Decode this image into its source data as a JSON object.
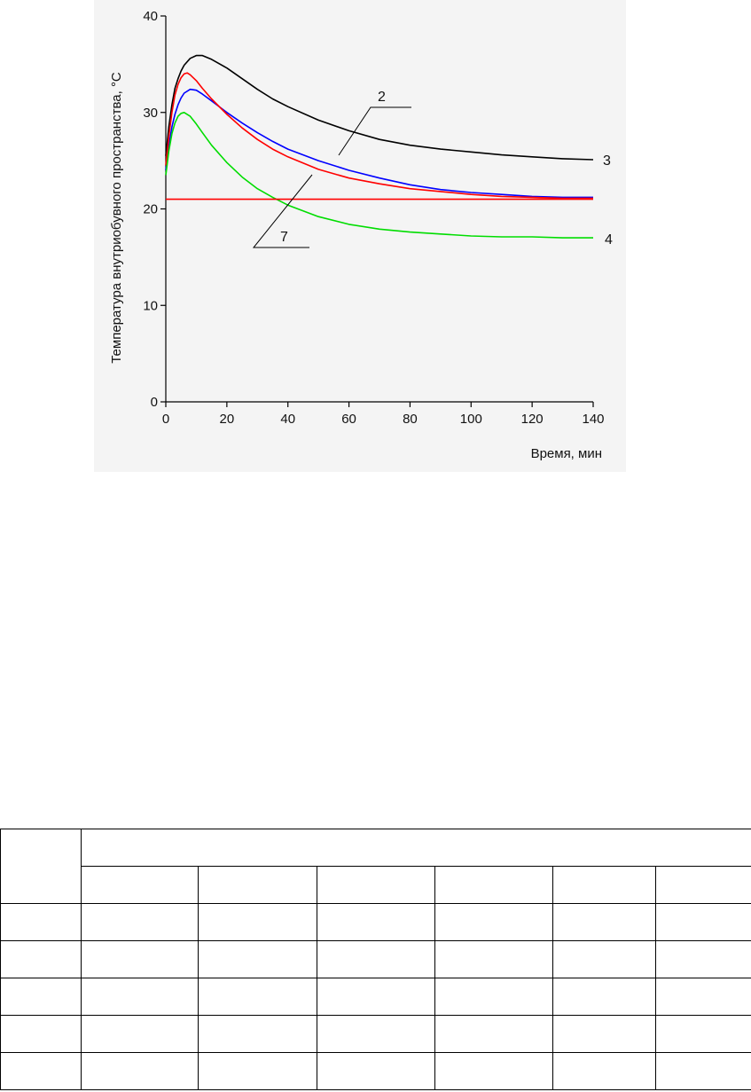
{
  "chart_data": {
    "type": "line",
    "xlabel": "Время, мин",
    "ylabel": "Температура внутриобувного пространства, °C",
    "xlim": [
      0,
      140
    ],
    "ylim": [
      0,
      40
    ],
    "xticks": [
      0,
      20,
      40,
      60,
      80,
      100,
      120,
      140
    ],
    "yticks": [
      0,
      10,
      20,
      30,
      40
    ],
    "grid": false,
    "series": [
      {
        "name": "3",
        "color": "#000000",
        "x": [
          0,
          1,
          2,
          3,
          4,
          5,
          6,
          8,
          10,
          12,
          15,
          20,
          25,
          30,
          35,
          40,
          50,
          60,
          70,
          80,
          90,
          100,
          110,
          120,
          130,
          140
        ],
        "y": [
          25.5,
          28.5,
          30.8,
          32.5,
          33.5,
          34.3,
          34.9,
          35.6,
          35.9,
          35.9,
          35.5,
          34.6,
          33.5,
          32.4,
          31.4,
          30.6,
          29.2,
          28.1,
          27.2,
          26.6,
          26.2,
          25.9,
          25.6,
          25.4,
          25.2,
          25.1
        ]
      },
      {
        "name": "2",
        "color": "#0000ff",
        "x": [
          0,
          1,
          2,
          3,
          4,
          5,
          6,
          8,
          10,
          12,
          15,
          20,
          25,
          30,
          35,
          40,
          50,
          60,
          70,
          80,
          90,
          100,
          110,
          120,
          130,
          140
        ],
        "y": [
          24.0,
          26.5,
          28.5,
          29.8,
          30.8,
          31.5,
          32.0,
          32.4,
          32.3,
          31.9,
          31.2,
          30.0,
          28.9,
          27.9,
          27.0,
          26.2,
          25.0,
          24.0,
          23.2,
          22.5,
          22.0,
          21.7,
          21.5,
          21.3,
          21.2,
          21.2
        ]
      },
      {
        "name": "",
        "color": "#ff0000",
        "x": [
          0,
          1,
          2,
          3,
          4,
          5,
          6,
          7,
          8,
          10,
          12,
          15,
          20,
          25,
          30,
          35,
          40,
          50,
          60,
          70,
          80,
          90,
          100,
          110,
          120,
          130,
          140
        ],
        "y": [
          24.5,
          27.5,
          30.0,
          31.8,
          32.9,
          33.6,
          34.0,
          34.1,
          33.9,
          33.3,
          32.5,
          31.4,
          29.8,
          28.4,
          27.2,
          26.2,
          25.4,
          24.1,
          23.2,
          22.6,
          22.1,
          21.8,
          21.5,
          21.3,
          21.2,
          21.1,
          21.1
        ]
      },
      {
        "name": "4",
        "color": "#00dd00",
        "x": [
          0,
          1,
          2,
          3,
          4,
          5,
          6,
          8,
          10,
          12,
          15,
          20,
          25,
          30,
          35,
          40,
          50,
          60,
          70,
          80,
          90,
          100,
          110,
          120,
          130,
          140
        ],
        "y": [
          23.5,
          26.0,
          27.8,
          28.9,
          29.6,
          29.9,
          30.0,
          29.6,
          28.8,
          27.9,
          26.6,
          24.8,
          23.3,
          22.1,
          21.2,
          20.4,
          19.2,
          18.4,
          17.9,
          17.6,
          17.4,
          17.2,
          17.1,
          17.1,
          17.0,
          17.0
        ]
      },
      {
        "name": "7",
        "color": "#ff0000",
        "x": [
          0,
          140
        ],
        "y": [
          21.0,
          21.0
        ]
      }
    ],
    "callouts": [
      {
        "text": "2",
        "target_series": "2"
      },
      {
        "text": "7",
        "target_series": "7"
      },
      {
        "text": "3",
        "target_series": "3"
      },
      {
        "text": "4",
        "target_series": "4"
      }
    ]
  },
  "table": {
    "columns": 7,
    "header_rows": 2,
    "body_rows": 5,
    "cells_empty": true
  }
}
